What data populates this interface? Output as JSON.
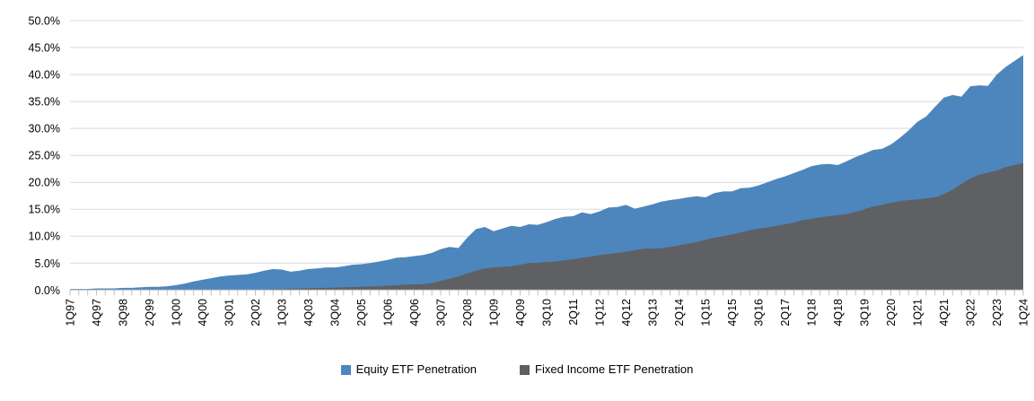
{
  "page": {
    "background": "#FFFFFF"
  },
  "chart_data": {
    "type": "area",
    "mode": "overlay",
    "title": "",
    "legend_position": "bottom-center",
    "grid": {
      "gridline_color": "#D9D9D9",
      "axis_color": "#BFBFBF",
      "text_color": "#000000"
    },
    "x_axis": {
      "first_point": "1Q97",
      "last_point": "1Q24",
      "label_every_n_points": 3,
      "tick_labels": [
        "1Q97",
        "4Q97",
        "3Q98",
        "2Q99",
        "1Q00",
        "4Q00",
        "3Q01",
        "2Q02",
        "1Q03",
        "4Q03",
        "3Q04",
        "2Q05",
        "1Q06",
        "4Q06",
        "3Q07",
        "2Q08",
        "1Q09",
        "4Q09",
        "3Q10",
        "2Q11",
        "1Q12",
        "4Q12",
        "3Q13",
        "2Q14",
        "1Q15",
        "4Q15",
        "3Q16",
        "2Q17",
        "1Q18",
        "4Q18",
        "3Q19",
        "2Q20",
        "1Q21",
        "4Q21",
        "3Q22",
        "2Q23",
        "1Q24"
      ]
    },
    "y_axis": {
      "min": 0,
      "max": 50,
      "unit": "%",
      "tick_labels": [
        "0.0%",
        "5.0%",
        "10.0%",
        "15.0%",
        "20.0%",
        "25.0%",
        "30.0%",
        "35.0%",
        "40.0%",
        "45.0%",
        "50.0%"
      ]
    },
    "series": [
      {
        "name": "Equity ETF Penetration",
        "color": "#4D86BC",
        "values": [
          0.2,
          0.2,
          0.2,
          0.3,
          0.3,
          0.3,
          0.4,
          0.4,
          0.5,
          0.6,
          0.6,
          0.7,
          0.9,
          1.2,
          1.6,
          1.9,
          2.2,
          2.5,
          2.7,
          2.8,
          2.9,
          3.2,
          3.6,
          3.9,
          3.8,
          3.4,
          3.6,
          3.9,
          4.0,
          4.2,
          4.2,
          4.4,
          4.7,
          4.8,
          5.0,
          5.3,
          5.6,
          6.0,
          6.1,
          6.3,
          6.5,
          6.9,
          7.6,
          8.0,
          7.8,
          9.7,
          11.3,
          11.7,
          10.9,
          11.4,
          11.9,
          11.7,
          12.2,
          12.1,
          12.6,
          13.2,
          13.6,
          13.7,
          14.4,
          14.1,
          14.6,
          15.3,
          15.4,
          15.8,
          15.1,
          15.5,
          15.9,
          16.4,
          16.7,
          16.9,
          17.2,
          17.4,
          17.2,
          18.0,
          18.3,
          18.3,
          18.9,
          19.0,
          19.4,
          20.0,
          20.6,
          21.1,
          21.7,
          22.3,
          23.0,
          23.3,
          23.4,
          23.2,
          23.9,
          24.7,
          25.3,
          26.0,
          26.2,
          27.0,
          28.2,
          29.6,
          31.2,
          32.2,
          34.0,
          35.7,
          36.2,
          35.9,
          37.8,
          38.0,
          37.9,
          40.0,
          41.4,
          42.5,
          43.6
        ]
      },
      {
        "name": "Fixed Income ETF Penetration",
        "color": "#5F6064",
        "values": [
          0,
          0,
          0,
          0,
          0,
          0,
          0,
          0,
          0,
          0,
          0,
          0,
          0,
          0,
          0,
          0,
          0,
          0,
          0,
          0,
          0,
          0,
          0.1,
          0.15,
          0.2,
          0.25,
          0.3,
          0.35,
          0.4,
          0.4,
          0.45,
          0.5,
          0.55,
          0.6,
          0.65,
          0.7,
          0.8,
          0.9,
          1.0,
          1.05,
          1.1,
          1.3,
          1.7,
          2.1,
          2.5,
          3.1,
          3.6,
          4.0,
          4.2,
          4.3,
          4.4,
          4.7,
          5.0,
          5.1,
          5.2,
          5.3,
          5.5,
          5.7,
          6.0,
          6.2,
          6.5,
          6.7,
          6.9,
          7.1,
          7.4,
          7.7,
          7.7,
          7.8,
          8.0,
          8.3,
          8.6,
          8.9,
          9.3,
          9.7,
          10.0,
          10.3,
          10.7,
          11.1,
          11.4,
          11.6,
          11.9,
          12.2,
          12.5,
          13.0,
          13.2,
          13.5,
          13.7,
          13.9,
          14.1,
          14.5,
          15.0,
          15.5,
          15.8,
          16.2,
          16.5,
          16.7,
          16.8,
          17.0,
          17.2,
          17.8,
          18.6,
          19.7,
          20.7,
          21.4,
          21.8,
          22.2,
          22.8,
          23.2,
          23.6
        ]
      }
    ]
  }
}
